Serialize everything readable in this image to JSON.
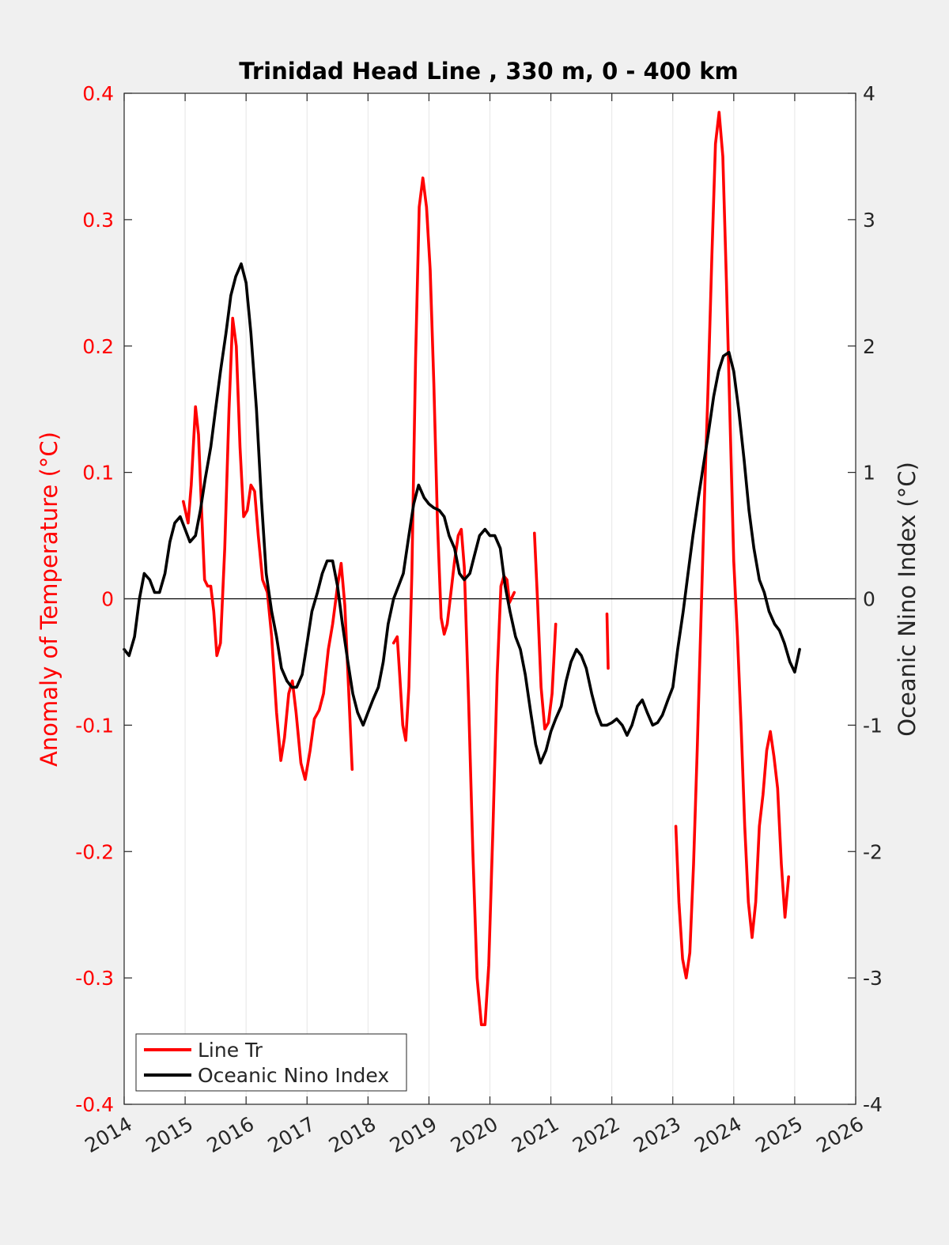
{
  "chart_data": {
    "type": "line",
    "title": "Trinidad Head Line , 330 m, 0 - 400 km",
    "xlim": [
      2014,
      2026
    ],
    "x_ticks": [
      "2014",
      "2015",
      "2016",
      "2017",
      "2018",
      "2019",
      "2020",
      "2021",
      "2022",
      "2023",
      "2024",
      "2025",
      "2026"
    ],
    "left_axis": {
      "label": "Anomaly of Temperature (°C)",
      "ylim": [
        -0.4,
        0.4
      ],
      "ticks": [
        "0.4",
        "0.3",
        "0.2",
        "0.1",
        "0",
        "-0.1",
        "-0.2",
        "-0.3",
        "-0.4"
      ],
      "color": "#ff0000"
    },
    "right_axis": {
      "label": "Oceanic Nino Index (°C)",
      "ylim": [
        -4,
        4
      ],
      "ticks": [
        "4",
        "3",
        "2",
        "1",
        "0",
        "-1",
        "-2",
        "-3",
        "-4"
      ],
      "color": "#000000"
    },
    "zero_line": true,
    "grid": "vertical",
    "legend_placement": "bottom-left",
    "series": [
      {
        "name": "Line Tr",
        "axis": "left",
        "color": "#ff0000",
        "segments": [
          [
            [
              2014.97,
              0.077
            ],
            [
              2015.05,
              0.06
            ],
            [
              2015.1,
              0.09
            ],
            [
              2015.17,
              0.152
            ],
            [
              2015.22,
              0.13
            ],
            [
              2015.27,
              0.07
            ],
            [
              2015.32,
              0.015
            ],
            [
              2015.37,
              0.01
            ],
            [
              2015.42,
              0.01
            ],
            [
              2015.47,
              -0.01
            ],
            [
              2015.52,
              -0.045
            ],
            [
              2015.58,
              -0.035
            ],
            [
              2015.65,
              0.04
            ],
            [
              2015.72,
              0.15
            ],
            [
              2015.78,
              0.222
            ],
            [
              2015.84,
              0.2
            ],
            [
              2015.9,
              0.12
            ],
            [
              2015.96,
              0.065
            ],
            [
              2016.02,
              0.07
            ],
            [
              2016.08,
              0.09
            ],
            [
              2016.14,
              0.085
            ],
            [
              2016.2,
              0.05
            ],
            [
              2016.27,
              0.015
            ],
            [
              2016.35,
              0.005
            ],
            [
              2016.42,
              -0.03
            ],
            [
              2016.5,
              -0.09
            ],
            [
              2016.57,
              -0.128
            ],
            [
              2016.63,
              -0.11
            ],
            [
              2016.7,
              -0.075
            ],
            [
              2016.76,
              -0.065
            ],
            [
              2016.82,
              -0.09
            ],
            [
              2016.9,
              -0.13
            ],
            [
              2016.97,
              -0.143
            ],
            [
              2017.05,
              -0.12
            ],
            [
              2017.12,
              -0.095
            ],
            [
              2017.2,
              -0.088
            ],
            [
              2017.27,
              -0.075
            ],
            [
              2017.35,
              -0.04
            ],
            [
              2017.42,
              -0.02
            ],
            [
              2017.5,
              0.01
            ],
            [
              2017.56,
              0.028
            ],
            [
              2017.62,
              -0.005
            ],
            [
              2017.68,
              -0.07
            ],
            [
              2017.74,
              -0.135
            ]
          ],
          [
            [
              2018.42,
              -0.035
            ],
            [
              2018.48,
              -0.03
            ],
            [
              2018.52,
              -0.06
            ],
            [
              2018.57,
              -0.1
            ],
            [
              2018.62,
              -0.112
            ],
            [
              2018.67,
              -0.07
            ],
            [
              2018.72,
              0.02
            ],
            [
              2018.78,
              0.19
            ],
            [
              2018.84,
              0.31
            ],
            [
              2018.9,
              0.333
            ],
            [
              2018.96,
              0.31
            ],
            [
              2019.02,
              0.26
            ],
            [
              2019.08,
              0.17
            ],
            [
              2019.14,
              0.06
            ],
            [
              2019.2,
              -0.015
            ],
            [
              2019.25,
              -0.028
            ],
            [
              2019.3,
              -0.02
            ],
            [
              2019.36,
              0.005
            ],
            [
              2019.42,
              0.03
            ],
            [
              2019.48,
              0.05
            ],
            [
              2019.53,
              0.055
            ],
            [
              2019.58,
              0.025
            ],
            [
              2019.65,
              -0.08
            ],
            [
              2019.72,
              -0.2
            ],
            [
              2019.79,
              -0.3
            ],
            [
              2019.86,
              -0.337
            ],
            [
              2019.92,
              -0.337
            ],
            [
              2019.98,
              -0.29
            ],
            [
              2020.05,
              -0.18
            ],
            [
              2020.12,
              -0.06
            ],
            [
              2020.18,
              0.01
            ],
            [
              2020.23,
              0.018
            ],
            [
              2020.28,
              0.015
            ],
            [
              2020.32,
              -0.003
            ],
            [
              2020.37,
              0.002
            ],
            [
              2020.4,
              0.005
            ]
          ],
          [
            [
              2020.73,
              0.052
            ],
            [
              2020.78,
              0.0
            ],
            [
              2020.84,
              -0.07
            ],
            [
              2020.9,
              -0.103
            ],
            [
              2020.96,
              -0.098
            ],
            [
              2021.02,
              -0.075
            ],
            [
              2021.08,
              -0.02
            ]
          ],
          [
            [
              2021.92,
              -0.012
            ],
            [
              2021.94,
              -0.055
            ]
          ],
          [
            [
              2023.05,
              -0.18
            ],
            [
              2023.1,
              -0.24
            ],
            [
              2023.16,
              -0.285
            ],
            [
              2023.22,
              -0.3
            ],
            [
              2023.28,
              -0.28
            ],
            [
              2023.34,
              -0.21
            ],
            [
              2023.4,
              -0.12
            ],
            [
              2023.46,
              -0.02
            ],
            [
              2023.52,
              0.08
            ],
            [
              2023.58,
              0.17
            ],
            [
              2023.64,
              0.27
            ],
            [
              2023.7,
              0.36
            ],
            [
              2023.76,
              0.385
            ],
            [
              2023.82,
              0.35
            ],
            [
              2023.88,
              0.25
            ],
            [
              2023.94,
              0.14
            ],
            [
              2024.0,
              0.03
            ],
            [
              2024.06,
              -0.03
            ],
            [
              2024.12,
              -0.1
            ],
            [
              2024.18,
              -0.18
            ],
            [
              2024.24,
              -0.24
            ],
            [
              2024.3,
              -0.268
            ],
            [
              2024.36,
              -0.24
            ],
            [
              2024.42,
              -0.18
            ],
            [
              2024.48,
              -0.155
            ],
            [
              2024.54,
              -0.12
            ],
            [
              2024.6,
              -0.105
            ],
            [
              2024.66,
              -0.125
            ],
            [
              2024.72,
              -0.15
            ],
            [
              2024.78,
              -0.21
            ],
            [
              2024.84,
              -0.252
            ],
            [
              2024.9,
              -0.22
            ]
          ]
        ]
      },
      {
        "name": "Oceanic Nino Index",
        "axis": "right",
        "color": "#000000",
        "segments": [
          [
            [
              2014.0,
              -0.4
            ],
            [
              2014.08,
              -0.45
            ],
            [
              2014.17,
              -0.3
            ],
            [
              2014.25,
              0.0
            ],
            [
              2014.33,
              0.2
            ],
            [
              2014.42,
              0.15
            ],
            [
              2014.5,
              0.05
            ],
            [
              2014.58,
              0.05
            ],
            [
              2014.67,
              0.2
            ],
            [
              2014.75,
              0.45
            ],
            [
              2014.83,
              0.6
            ],
            [
              2014.92,
              0.65
            ],
            [
              2015.0,
              0.55
            ],
            [
              2015.08,
              0.45
            ],
            [
              2015.17,
              0.5
            ],
            [
              2015.25,
              0.7
            ],
            [
              2015.33,
              0.95
            ],
            [
              2015.42,
              1.2
            ],
            [
              2015.5,
              1.5
            ],
            [
              2015.58,
              1.8
            ],
            [
              2015.67,
              2.1
            ],
            [
              2015.75,
              2.4
            ],
            [
              2015.83,
              2.55
            ],
            [
              2015.92,
              2.65
            ],
            [
              2016.0,
              2.5
            ],
            [
              2016.08,
              2.1
            ],
            [
              2016.17,
              1.5
            ],
            [
              2016.25,
              0.8
            ],
            [
              2016.33,
              0.2
            ],
            [
              2016.42,
              -0.1
            ],
            [
              2016.5,
              -0.3
            ],
            [
              2016.58,
              -0.55
            ],
            [
              2016.67,
              -0.65
            ],
            [
              2016.75,
              -0.7
            ],
            [
              2016.83,
              -0.7
            ],
            [
              2016.92,
              -0.6
            ],
            [
              2017.0,
              -0.35
            ],
            [
              2017.08,
              -0.1
            ],
            [
              2017.17,
              0.05
            ],
            [
              2017.25,
              0.2
            ],
            [
              2017.33,
              0.3
            ],
            [
              2017.42,
              0.3
            ],
            [
              2017.5,
              0.1
            ],
            [
              2017.58,
              -0.2
            ],
            [
              2017.67,
              -0.5
            ],
            [
              2017.75,
              -0.75
            ],
            [
              2017.83,
              -0.9
            ],
            [
              2017.92,
              -1.0
            ],
            [
              2018.0,
              -0.9
            ],
            [
              2018.08,
              -0.8
            ],
            [
              2018.17,
              -0.7
            ],
            [
              2018.25,
              -0.5
            ],
            [
              2018.33,
              -0.2
            ],
            [
              2018.42,
              0.0
            ],
            [
              2018.5,
              0.1
            ],
            [
              2018.58,
              0.2
            ],
            [
              2018.67,
              0.5
            ],
            [
              2018.75,
              0.75
            ],
            [
              2018.83,
              0.9
            ],
            [
              2018.92,
              0.8
            ],
            [
              2019.0,
              0.75
            ],
            [
              2019.08,
              0.72
            ],
            [
              2019.17,
              0.7
            ],
            [
              2019.25,
              0.65
            ],
            [
              2019.33,
              0.5
            ],
            [
              2019.42,
              0.4
            ],
            [
              2019.5,
              0.2
            ],
            [
              2019.58,
              0.15
            ],
            [
              2019.67,
              0.2
            ],
            [
              2019.75,
              0.35
            ],
            [
              2019.83,
              0.5
            ],
            [
              2019.92,
              0.55
            ],
            [
              2020.0,
              0.5
            ],
            [
              2020.08,
              0.5
            ],
            [
              2020.17,
              0.4
            ],
            [
              2020.25,
              0.1
            ],
            [
              2020.33,
              -0.1
            ],
            [
              2020.42,
              -0.3
            ],
            [
              2020.5,
              -0.4
            ],
            [
              2020.58,
              -0.6
            ],
            [
              2020.67,
              -0.9
            ],
            [
              2020.75,
              -1.15
            ],
            [
              2020.83,
              -1.3
            ],
            [
              2020.92,
              -1.2
            ],
            [
              2021.0,
              -1.05
            ],
            [
              2021.08,
              -0.95
            ],
            [
              2021.17,
              -0.85
            ],
            [
              2021.25,
              -0.65
            ],
            [
              2021.33,
              -0.5
            ],
            [
              2021.42,
              -0.4
            ],
            [
              2021.5,
              -0.45
            ],
            [
              2021.58,
              -0.55
            ],
            [
              2021.67,
              -0.75
            ],
            [
              2021.75,
              -0.9
            ],
            [
              2021.83,
              -1.0
            ],
            [
              2021.92,
              -1.0
            ],
            [
              2022.0,
              -0.98
            ],
            [
              2022.08,
              -0.95
            ],
            [
              2022.17,
              -1.0
            ],
            [
              2022.25,
              -1.08
            ],
            [
              2022.33,
              -1.0
            ],
            [
              2022.42,
              -0.85
            ],
            [
              2022.5,
              -0.8
            ],
            [
              2022.58,
              -0.9
            ],
            [
              2022.67,
              -1.0
            ],
            [
              2022.75,
              -0.98
            ],
            [
              2022.83,
              -0.92
            ],
            [
              2022.92,
              -0.8
            ],
            [
              2023.0,
              -0.7
            ],
            [
              2023.08,
              -0.4
            ],
            [
              2023.17,
              -0.1
            ],
            [
              2023.25,
              0.2
            ],
            [
              2023.33,
              0.5
            ],
            [
              2023.42,
              0.8
            ],
            [
              2023.5,
              1.05
            ],
            [
              2023.58,
              1.3
            ],
            [
              2023.67,
              1.6
            ],
            [
              2023.75,
              1.8
            ],
            [
              2023.83,
              1.92
            ],
            [
              2023.92,
              1.95
            ],
            [
              2024.0,
              1.8
            ],
            [
              2024.08,
              1.5
            ],
            [
              2024.17,
              1.1
            ],
            [
              2024.25,
              0.7
            ],
            [
              2024.33,
              0.4
            ],
            [
              2024.42,
              0.15
            ],
            [
              2024.5,
              0.05
            ],
            [
              2024.58,
              -0.1
            ],
            [
              2024.67,
              -0.2
            ],
            [
              2024.75,
              -0.25
            ],
            [
              2024.83,
              -0.35
            ],
            [
              2024.92,
              -0.5
            ],
            [
              2025.0,
              -0.58
            ],
            [
              2025.08,
              -0.4
            ]
          ]
        ]
      }
    ]
  }
}
